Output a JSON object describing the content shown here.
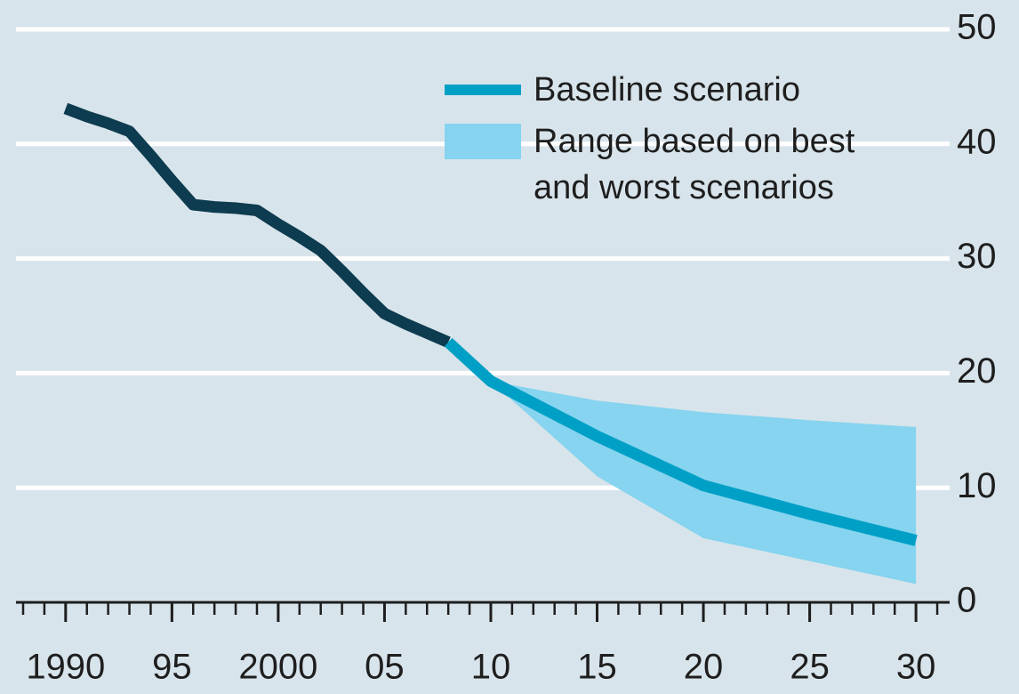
{
  "chart_data": {
    "type": "line",
    "x": [
      1990,
      1991,
      1992,
      1993,
      1994,
      1995,
      1996,
      1997,
      1998,
      1999,
      2000,
      2001,
      2002,
      2003,
      2004,
      2005,
      2006,
      2007,
      2008,
      2010,
      2015,
      2020,
      2025,
      2030
    ],
    "series": [
      {
        "color": "#0d3b4f",
        "values": [
          43.1,
          42.4,
          41.8,
          41.1,
          39.0,
          36.8,
          34.7,
          34.5,
          34.4,
          34.2,
          33.0,
          31.9,
          30.7,
          28.9,
          27.0,
          25.2,
          24.3,
          23.5,
          22.7,
          null,
          null,
          null,
          null,
          null
        ]
      },
      {
        "name": "Baseline scenario",
        "color": "#00a0c6",
        "values": [
          null,
          null,
          null,
          null,
          null,
          null,
          null,
          null,
          null,
          null,
          null,
          null,
          null,
          null,
          null,
          null,
          null,
          null,
          22.7,
          19.3,
          14.5,
          10.2,
          7.7,
          5.4
        ]
      }
    ],
    "range": {
      "name": "Range based on best and worst scenarios",
      "color": "#86d4ef",
      "lower": [
        null,
        null,
        null,
        null,
        null,
        null,
        null,
        null,
        null,
        null,
        null,
        null,
        null,
        null,
        null,
        null,
        null,
        null,
        null,
        19.3,
        11.0,
        5.6,
        3.6,
        1.6
      ],
      "upper": [
        null,
        null,
        null,
        null,
        null,
        null,
        null,
        null,
        null,
        null,
        null,
        null,
        null,
        null,
        null,
        null,
        null,
        null,
        null,
        19.3,
        17.6,
        16.6,
        15.9,
        15.3
      ]
    },
    "xlim": [
      1988,
      2031.5
    ],
    "xticks": [
      1990,
      {
        "value": 1995,
        "label": "95"
      },
      2000,
      {
        "value": 2005,
        "label": "05"
      },
      {
        "value": 2010,
        "label": "10"
      },
      {
        "value": 2015,
        "label": "15"
      },
      {
        "value": 2020,
        "label": "20"
      },
      {
        "value": 2025,
        "label": "25"
      },
      {
        "value": 2030,
        "label": "30"
      }
    ],
    "ylim": [
      0,
      50
    ],
    "yticks": [
      0,
      10,
      20,
      30,
      40,
      50
    ],
    "grid": true,
    "legend": "top-right"
  }
}
